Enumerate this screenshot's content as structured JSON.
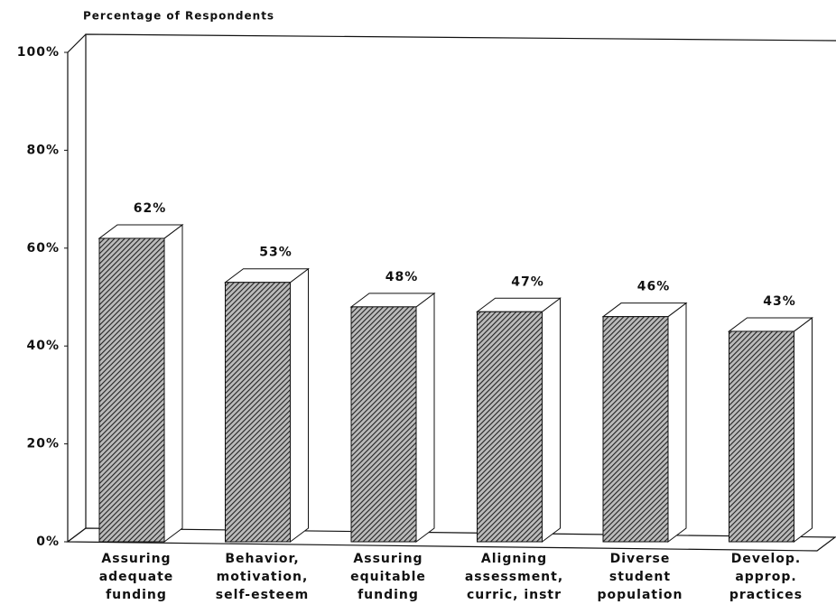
{
  "chart_data": {
    "type": "bar3d",
    "title": "Percentage of Respondents",
    "categories": [
      [
        "Assuring",
        "adequate",
        "funding"
      ],
      [
        "Behavior,",
        "motivation,",
        "self-esteem"
      ],
      [
        "Assuring",
        "equitable",
        "funding"
      ],
      [
        "Aligning",
        "assessment,",
        "curric, instr"
      ],
      [
        "Diverse",
        "student",
        "population"
      ],
      [
        "Develop.",
        "approp.",
        "practices"
      ]
    ],
    "values": [
      62,
      53,
      48,
      47,
      46,
      43
    ],
    "value_labels": [
      "62%",
      "53%",
      "48%",
      "47%",
      "46%",
      "43%"
    ],
    "color": "#555555",
    "ylim": [
      0,
      100
    ],
    "yticks": [
      {
        "value": 0,
        "label": "0%"
      },
      {
        "value": 20,
        "label": "20%"
      },
      {
        "value": 40,
        "label": "40%"
      },
      {
        "value": 60,
        "label": "60%"
      },
      {
        "value": 80,
        "label": "80%"
      },
      {
        "value": 100,
        "label": "100%"
      }
    ]
  }
}
